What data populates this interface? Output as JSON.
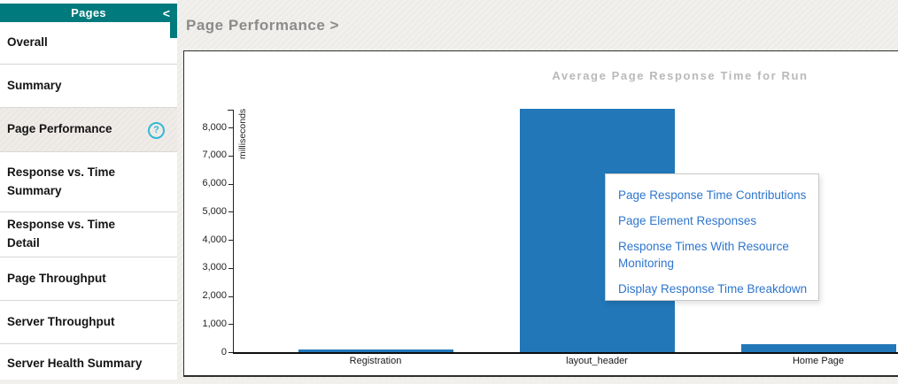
{
  "sidebar": {
    "header": {
      "title": "Pages",
      "collapse_icon": "<"
    },
    "items": [
      {
        "label": "Overall",
        "selected": false,
        "has_help": false
      },
      {
        "label": "Summary",
        "selected": false,
        "has_help": false
      },
      {
        "label": "Page Performance",
        "selected": true,
        "has_help": true,
        "help_glyph": "?"
      },
      {
        "label": "Response vs. Time Summary",
        "selected": false,
        "has_help": false
      },
      {
        "label": "Response vs. Time Detail",
        "selected": false,
        "has_help": false
      },
      {
        "label": "Page Throughput",
        "selected": false,
        "has_help": false
      },
      {
        "label": "Server Throughput",
        "selected": false,
        "has_help": false
      },
      {
        "label": "Server Health Summary",
        "selected": false,
        "has_help": false
      }
    ]
  },
  "main": {
    "breadcrumb": "Page Performance >"
  },
  "chart_data": {
    "type": "bar",
    "title": "Average Page Response Time for Run",
    "xlabel": "",
    "ylabel": "milliseconds",
    "categories": [
      "Registration",
      "layout_header",
      "Home Page"
    ],
    "values": [
      95,
      8660,
      280
    ],
    "ylim": [
      0,
      8000
    ],
    "ytick_interval": 1000,
    "ytick_labels": [
      "0",
      "1,000",
      "2,000",
      "3,000",
      "4,000",
      "5,000",
      "6,000",
      "7,000",
      "8,000"
    ],
    "grid": false,
    "legend_position": "none",
    "bar_color": "#2177b8"
  },
  "context_menu": {
    "links": [
      "Page Response Time Contributions",
      "Page Element Responses",
      "Response Times With Resource Monitoring",
      "Display Response Time Breakdown"
    ],
    "link_color": "#2e76cd"
  },
  "colors": {
    "sidebar_header": "#007a7d",
    "selected_item_bg": "#efece8",
    "main_bg": "#f2f0ed",
    "bar": "#2177b8",
    "help_icon": "#33b7d6",
    "breadcrumb_text": "#8b8b8b",
    "chart_title_text": "#b9b9b9"
  }
}
